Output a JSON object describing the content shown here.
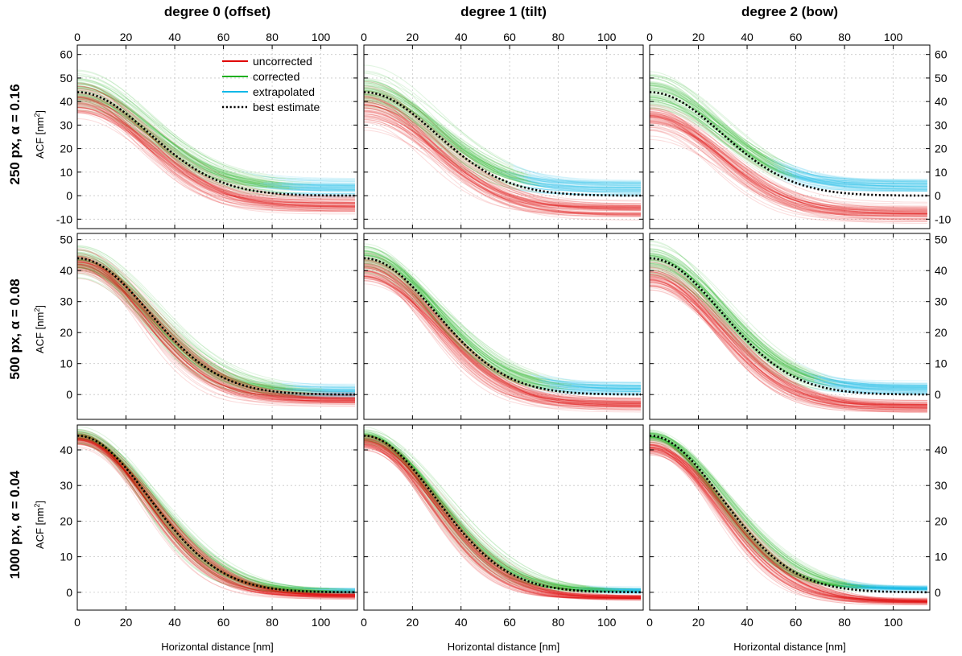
{
  "figure": {
    "column_titles": [
      "degree 0 (offset)",
      "degree 1 (tilt)",
      "degree 2 (bow)"
    ],
    "row_titles": [
      "250 px, α = 0.16",
      "500 px, α = 0.08",
      "1000 px, α = 0.04"
    ],
    "ylabel_main": "ACF [nm",
    "ylabel_sup": "2",
    "ylabel_end": "]",
    "xlabel": "Horizontal distance [nm]",
    "legend": [
      "uncorrected",
      "corrected",
      "extrapolated",
      "best estimate"
    ]
  },
  "colors": {
    "uncorrected": "#e00000",
    "corrected": "#20b020",
    "extrapolated": "#10b8e8",
    "best_estimate": "#000000"
  },
  "chart_data": {
    "type": "line",
    "xlim": [
      0,
      115
    ],
    "x_ticks": [
      0,
      20,
      40,
      60,
      80,
      100
    ],
    "grid": true,
    "legend_position": "top-right of first panel",
    "best_estimate_model": "y = 44 * exp(-(x/41.5)^2)",
    "rows": [
      {
        "label": "250 px, α = 0.16",
        "ylim": [
          -14,
          64
        ],
        "y_ticks": [
          -10,
          0,
          10,
          20,
          30,
          40,
          50,
          60
        ],
        "panels": [
          {
            "column": "degree 0 (offset)",
            "series": [
              {
                "name": "uncorrected",
                "y0": 40,
                "y_end": -4,
                "spread": 5
              },
              {
                "name": "corrected",
                "y0": 44,
                "y_end": 3,
                "spread": 5,
                "extrapolated_from_x": 85
              },
              {
                "name": "best estimate",
                "y0": 44,
                "y_end": 0
              }
            ]
          },
          {
            "column": "degree 1 (tilt)",
            "series": [
              {
                "name": "uncorrected",
                "y0": 38,
                "y_end": -6,
                "spread": 5
              },
              {
                "name": "corrected",
                "y0": 44,
                "y_end": 3,
                "spread": 5,
                "extrapolated_from_x": 65
              },
              {
                "name": "best estimate",
                "y0": 44,
                "y_end": 0
              }
            ]
          },
          {
            "column": "degree 2 (bow)",
            "series": [
              {
                "name": "uncorrected",
                "y0": 33,
                "y_end": -8,
                "spread": 5
              },
              {
                "name": "corrected",
                "y0": 44,
                "y_end": 4,
                "spread": 5,
                "extrapolated_from_x": 55
              },
              {
                "name": "best estimate",
                "y0": 44,
                "y_end": 0
              }
            ]
          }
        ]
      },
      {
        "label": "500 px, α = 0.08",
        "ylim": [
          -8,
          52
        ],
        "y_ticks": [
          0,
          10,
          20,
          30,
          40,
          50
        ],
        "panels": [
          {
            "column": "degree 0 (offset)",
            "series": [
              {
                "name": "uncorrected",
                "y0": 42,
                "y_end": -2,
                "spread": 3
              },
              {
                "name": "corrected",
                "y0": 44,
                "y_end": 1,
                "spread": 3,
                "extrapolated_from_x": 90
              },
              {
                "name": "best estimate",
                "y0": 44,
                "y_end": 0
              }
            ]
          },
          {
            "column": "degree 1 (tilt)",
            "series": [
              {
                "name": "uncorrected",
                "y0": 40,
                "y_end": -3,
                "spread": 3
              },
              {
                "name": "corrected",
                "y0": 44,
                "y_end": 2,
                "spread": 3,
                "extrapolated_from_x": 78
              },
              {
                "name": "best estimate",
                "y0": 44,
                "y_end": 0
              }
            ]
          },
          {
            "column": "degree 2 (bow)",
            "series": [
              {
                "name": "uncorrected",
                "y0": 38,
                "y_end": -4,
                "spread": 3
              },
              {
                "name": "corrected",
                "y0": 44,
                "y_end": 2,
                "spread": 3,
                "extrapolated_from_x": 70
              },
              {
                "name": "best estimate",
                "y0": 44,
                "y_end": 0
              }
            ]
          }
        ]
      },
      {
        "label": "1000 px, α = 0.04",
        "ylim": [
          -5,
          47
        ],
        "y_ticks": [
          0,
          10,
          20,
          30,
          40
        ],
        "panels": [
          {
            "column": "degree 0 (offset)",
            "series": [
              {
                "name": "uncorrected",
                "y0": 43,
                "y_end": -1,
                "spread": 1.2
              },
              {
                "name": "corrected",
                "y0": 44,
                "y_end": 0.3,
                "spread": 1.2,
                "extrapolated_from_x": 105
              },
              {
                "name": "best estimate",
                "y0": 44,
                "y_end": 0
              }
            ]
          },
          {
            "column": "degree 1 (tilt)",
            "series": [
              {
                "name": "uncorrected",
                "y0": 42,
                "y_end": -1.5,
                "spread": 1.2
              },
              {
                "name": "corrected",
                "y0": 44,
                "y_end": 0.5,
                "spread": 1.2,
                "extrapolated_from_x": 100
              },
              {
                "name": "best estimate",
                "y0": 44,
                "y_end": 0
              }
            ]
          },
          {
            "column": "degree 2 (bow)",
            "series": [
              {
                "name": "uncorrected",
                "y0": 41,
                "y_end": -2.5,
                "spread": 1.2
              },
              {
                "name": "corrected",
                "y0": 44,
                "y_end": 1,
                "spread": 1.2,
                "extrapolated_from_x": 85
              },
              {
                "name": "best estimate",
                "y0": 44,
                "y_end": 0
              }
            ]
          }
        ]
      }
    ]
  }
}
